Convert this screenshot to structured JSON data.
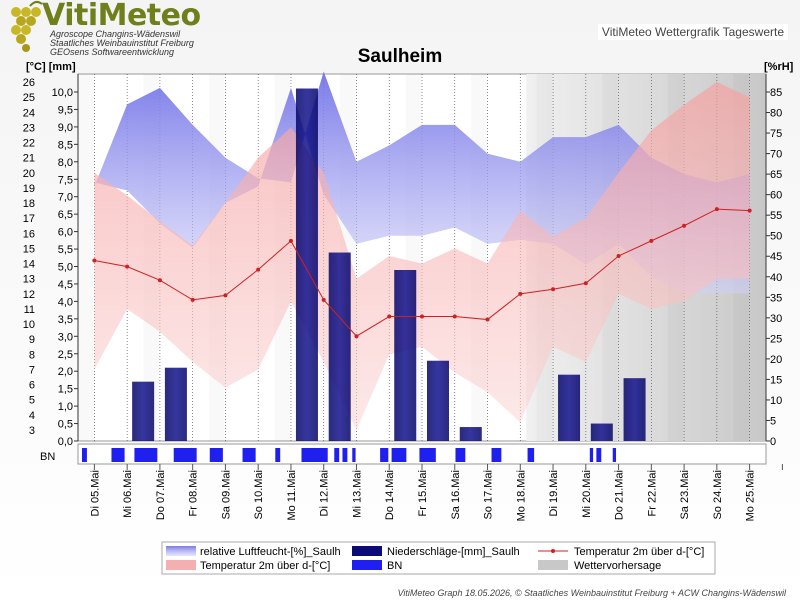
{
  "header": {
    "logo_title": "VitiMeteo",
    "logo_lines": [
      "Agroscope Changins-Wädenswil",
      "Staatliches Weinbauinstitut Freiburg",
      "GEOsens Softwareentwicklung"
    ],
    "right_label": "VitiMeteo Wettergrafik Tageswerte"
  },
  "footer": "VitiMeteo Graph 18.05.2026, © Staatliches Weinbauinstitut Freiburg + ACW Changins-Wädenswil",
  "chart_data": {
    "type": "area",
    "title": "Saulheim",
    "y_left_unit": "[°C] [mm]",
    "y_right_unit": "[%rH]",
    "x_categories": [
      "Di 05.Mai",
      "Mi 06.Mai",
      "Do 07.Mai",
      "Fr 08.Mai",
      "Sa 09.Mai",
      "So 10.Mai",
      "Mo 11.Mai",
      "Di 12.Mai",
      "Mi 13.Mai",
      "Do 14.Mai",
      "Fr 15.Mai",
      "Sa 16.Mai",
      "So 17.Mai",
      "Mo 18.Mai",
      "Di 19.Mai",
      "Mi 20.Mai",
      "Do 21.Mai",
      "Fr 22.Mai",
      "Sa 23.Mai",
      "So 24.Mai",
      "Mo 25.Mai"
    ],
    "temp_ticks": [
      "3",
      "4",
      "5",
      "6",
      "7",
      "8",
      "9",
      "10",
      "11",
      "12",
      "13",
      "14",
      "15",
      "16",
      "17",
      "18",
      "19",
      "20",
      "21",
      "22",
      "23",
      "24",
      "25",
      "26"
    ],
    "precip_ticks": [
      "0,0",
      "0,5",
      "1,0",
      "1,5",
      "2,0",
      "2,5",
      "3,0",
      "3,5",
      "4,0",
      "4,5",
      "5,0",
      "5,5",
      "6,0",
      "6,5",
      "7,0",
      "7,5",
      "8,0",
      "8,5",
      "9,0",
      "9,5",
      "10,0"
    ],
    "humidity_ticks": [
      "0",
      "5",
      "10",
      "15",
      "20",
      "25",
      "30",
      "35",
      "40",
      "45",
      "50",
      "55",
      "60",
      "65",
      "70",
      "75",
      "80",
      "85"
    ],
    "humidity_range_pct": [
      [
        62,
        63
      ],
      [
        82,
        61
      ],
      [
        86,
        53
      ],
      [
        77,
        47
      ],
      [
        69,
        58
      ],
      [
        64,
        62
      ],
      [
        63,
        86
      ],
      [
        90,
        60
      ],
      [
        68,
        48
      ],
      [
        72,
        50
      ],
      [
        77,
        50
      ],
      [
        77,
        52
      ],
      [
        70,
        48
      ],
      [
        68,
        49
      ],
      [
        74,
        48
      ],
      [
        74,
        43
      ],
      [
        77,
        48
      ],
      [
        69,
        40
      ],
      [
        65,
        36
      ],
      [
        63,
        36
      ],
      [
        65,
        36
      ]
    ],
    "temperature_range_c": [
      [
        20.0,
        7.0
      ],
      [
        18.5,
        11.0
      ],
      [
        16.8,
        9.5
      ],
      [
        15.2,
        7.5
      ],
      [
        18.0,
        5.8
      ],
      [
        21.0,
        7.0
      ],
      [
        23.0,
        11.5
      ],
      [
        20.0,
        7.5
      ],
      [
        13.0,
        3.0
      ],
      [
        14.5,
        8.0
      ],
      [
        14.0,
        8.5
      ],
      [
        15.0,
        6.8
      ],
      [
        14.0,
        5.5
      ],
      [
        17.5,
        3.5
      ],
      [
        15.8,
        8.5
      ],
      [
        17.0,
        7.5
      ],
      [
        20.0,
        12.0
      ],
      [
        22.8,
        11.0
      ],
      [
        24.5,
        11.5
      ],
      [
        26.0,
        13.0
      ],
      [
        25.0,
        13.0
      ]
    ],
    "temperature_mean_c": [
      14.2,
      13.8,
      12.9,
      11.6,
      11.9,
      13.6,
      15.5,
      11.6,
      9.2,
      10.5,
      10.5,
      10.5,
      10.3,
      12.0,
      12.3,
      12.7,
      14.5,
      15.5,
      16.5,
      17.6,
      17.5
    ],
    "precipitation_mm": [
      0,
      1.7,
      2.1,
      0,
      0,
      0,
      10.1,
      5.4,
      0,
      4.9,
      2.3,
      0.4,
      0,
      0,
      1.9,
      0.5,
      1.8,
      0,
      0,
      0,
      0
    ],
    "leaf_wetness_label": "BN",
    "leaf_wetness_blocks": [
      [
        0.0,
        0.15
      ],
      [
        0.9,
        1.3
      ],
      [
        1.6,
        2.3
      ],
      [
        2.8,
        3.5
      ],
      [
        3.9,
        4.3
      ],
      [
        4.9,
        5.3
      ],
      [
        5.9,
        6.05
      ],
      [
        6.7,
        7.5
      ],
      [
        7.7,
        7.85
      ],
      [
        7.95,
        8.1
      ],
      [
        8.25,
        8.35
      ],
      [
        9.1,
        9.35
      ],
      [
        9.45,
        9.9
      ],
      [
        10.3,
        10.8
      ],
      [
        11.4,
        11.7
      ],
      [
        12.5,
        12.8
      ],
      [
        13.6,
        13.8
      ],
      [
        15.5,
        15.6
      ],
      [
        15.7,
        15.85
      ],
      [
        16.2,
        16.3
      ]
    ],
    "forecast_from_day": 14,
    "legend": [
      "relative Luftfeucht-[%]_Saulh",
      "Niederschläge-[mm]_Saulh",
      "Temperatur 2m über d-[°C]",
      "Temperatur 2m über d-[°C]",
      "BN",
      "Wettervorhersage"
    ],
    "colors": {
      "humidity": "#7a7ae6",
      "precipitation": "#0a0a7a",
      "temperature_band": "#f4b0b0",
      "temperature_line": "#cc2222",
      "leaf_wetness": "#1f1ff0",
      "forecast": "#d8d8d8"
    }
  }
}
